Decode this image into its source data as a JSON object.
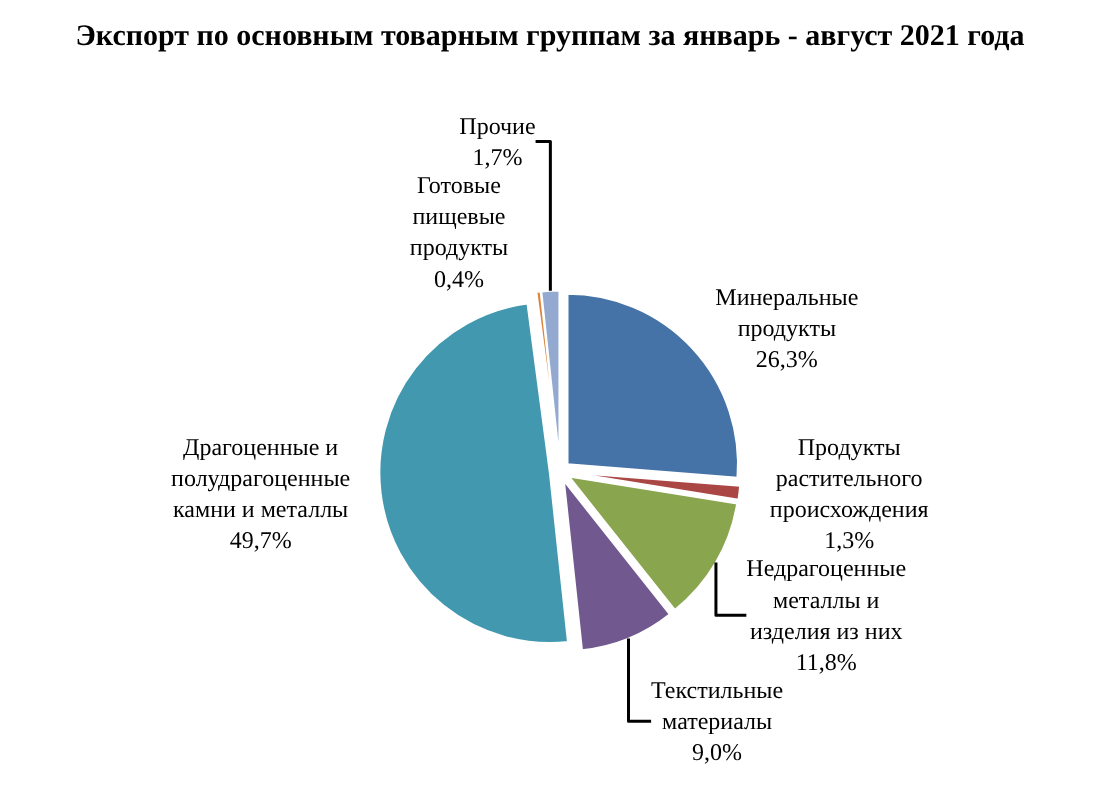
{
  "chart_data": {
    "type": "pie",
    "title": "Экспорт по основным товарным группам за январь - август 2021 года",
    "categories": [
      "Минеральные\nпродукты",
      "Продукты\nрастительного\nпроисхождения",
      "Недрагоценные\nметаллы и\nизделия из них",
      "Текстильные\nматериалы",
      "Драгоценные и\nполудрагоценные\nкамни и металлы",
      "Готовые\nпищевые\nпродукты",
      "Прочие"
    ],
    "values": [
      26.3,
      1.3,
      11.8,
      9.0,
      49.7,
      0.4,
      1.7
    ],
    "value_labels": [
      "26,3%",
      "1,3%",
      "11,8%",
      "9,0%",
      "49,7%",
      "0,4%",
      "1,7%"
    ],
    "colors": [
      "#4572a7",
      "#aa4643",
      "#89a54e",
      "#71588f",
      "#4198af",
      "#db843d",
      "#93a9cf"
    ],
    "legend": false
  }
}
